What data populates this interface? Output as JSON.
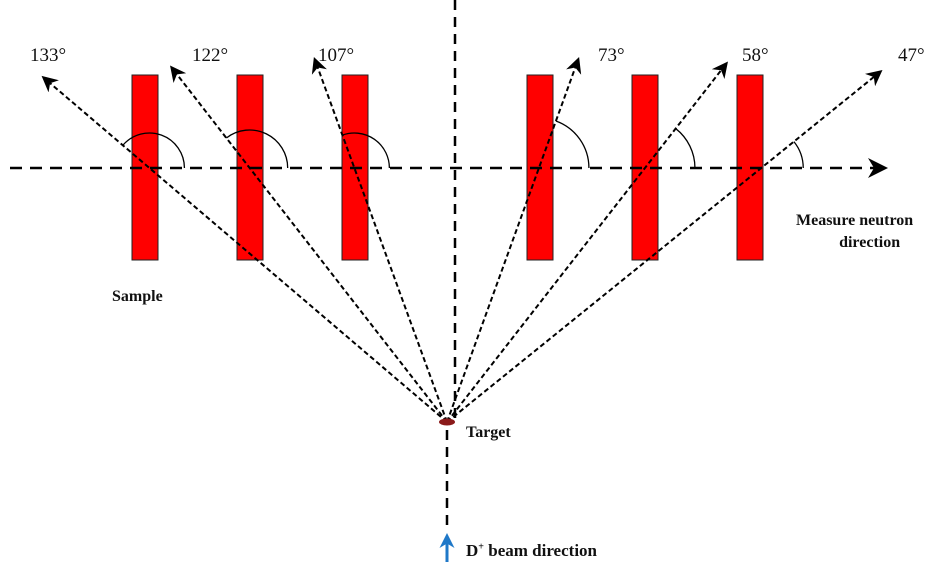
{
  "diagram": {
    "angles": [
      {
        "label": "133°",
        "value": 133
      },
      {
        "label": "122°",
        "value": 122
      },
      {
        "label": "107°",
        "value": 107
      },
      {
        "label": "73°",
        "value": 73
      },
      {
        "label": "58°",
        "value": 58
      },
      {
        "label": "47°",
        "value": 47
      }
    ],
    "labels": {
      "measure_line1": "Measure neutron",
      "measure_line2": "direction",
      "sample": "Sample",
      "target": "Target",
      "beam_prefix": "D",
      "beam_sup": "+",
      "beam_suffix": " beam direction"
    },
    "colors": {
      "sample": "#ff0000",
      "target": "#8b1a1a",
      "beam_arrow": "#1f78c8",
      "lines": "#000000"
    }
  }
}
